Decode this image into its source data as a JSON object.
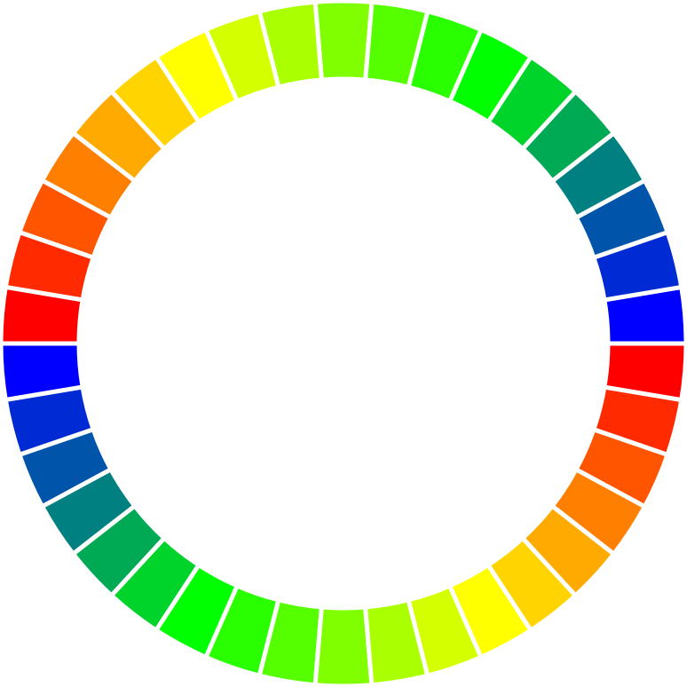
{
  "ring": {
    "colors": [
      "#0000ff",
      "#002ad4",
      "#0055aa",
      "#008080",
      "#00aa55",
      "#00d42a",
      "#00ff00",
      "#2aff00",
      "#55ff00",
      "#80ff00",
      "#aaff00",
      "#d4ff00",
      "#ffff00",
      "#ffd400",
      "#ffaa00",
      "#ff8000",
      "#ff5500",
      "#ff2a00",
      "#ff0000",
      "#0000ff",
      "#002ad4",
      "#0055aa",
      "#008080",
      "#00aa55",
      "#00d42a",
      "#00ff00",
      "#2aff00",
      "#55ff00",
      "#80ff00",
      "#aaff00",
      "#d4ff00",
      "#ffff00",
      "#ffd400",
      "#ffaa00",
      "#ff8000",
      "#ff5500",
      "#ff2a00",
      "#ff0000"
    ]
  }
}
